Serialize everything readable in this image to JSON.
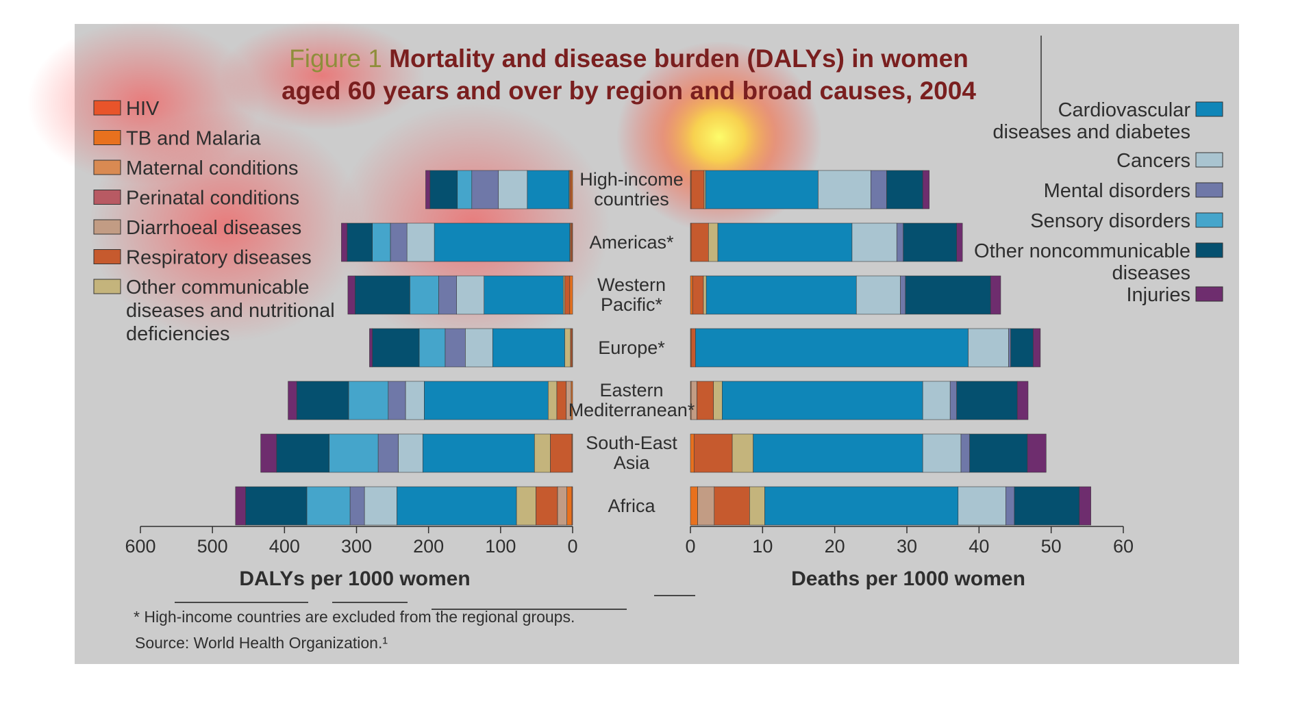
{
  "figure": {
    "title_prefix": "Figure 1",
    "title_line1": "Mortality and disease burden (DALYs) in women",
    "title_line2": "aged 60 years and over by region and broad causes, 2004",
    "footnote": "* High-income countries are excluded from the regional groups.",
    "source": "Source: World Health Organization.¹",
    "colors": {
      "background": "#cccccc",
      "title_prefix": "#8e8e3a",
      "title": "#7a1f1f",
      "text": "#2e2e2e"
    }
  },
  "legend_left": [
    {
      "label": "HIV",
      "color": "#e8542a"
    },
    {
      "label": "TB and Malaria",
      "color": "#e8711e"
    },
    {
      "label": "Maternal conditions",
      "color": "#d98a52"
    },
    {
      "label": "Perinatal conditions",
      "color": "#b85a63"
    },
    {
      "label": "Diarrhoeal diseases",
      "color": "#c29c84"
    },
    {
      "label": "Respiratory diseases",
      "color": "#c65a2e"
    },
    {
      "label": "Other communicable diseases and nutritional deficiencies",
      "label_lines": [
        "Other communicable",
        "diseases and nutritional",
        "deficiencies"
      ],
      "color": "#c4b47c"
    }
  ],
  "legend_right": [
    {
      "label": "Cardiovascular diseases and diabetes",
      "label_lines": [
        "Cardiovascular",
        "diseases and diabetes"
      ],
      "color": "#0f86b8"
    },
    {
      "label": "Cancers",
      "label_lines": [
        "Cancers"
      ],
      "color": "#a9c4d0"
    },
    {
      "label": "Mental disorders",
      "label_lines": [
        "Mental disorders"
      ],
      "color": "#6f78a8"
    },
    {
      "label": "Sensory disorders",
      "label_lines": [
        "Sensory disorders"
      ],
      "color": "#45a5cb"
    },
    {
      "label": "Other noncommunicable diseases",
      "label_lines": [
        "Other noncommunicable",
        "diseases"
      ],
      "color": "#05506f"
    },
    {
      "label": "Injuries",
      "label_lines": [
        "Injuries"
      ],
      "color": "#6e2d6e"
    }
  ],
  "regions": [
    {
      "name": "High-income countries",
      "lines": [
        "High-income",
        "countries"
      ]
    },
    {
      "name": "Americas*",
      "lines": [
        "Americas*"
      ]
    },
    {
      "name": "Western Pacific*",
      "lines": [
        "Western",
        "Pacific*"
      ]
    },
    {
      "name": "Europe*",
      "lines": [
        "Europe*"
      ]
    },
    {
      "name": "Eastern Mediterranean*",
      "lines": [
        "Eastern",
        "Mediterranean*"
      ]
    },
    {
      "name": "South-East Asia",
      "lines": [
        "South-East",
        "Asia"
      ]
    },
    {
      "name": "Africa",
      "lines": [
        "Africa"
      ]
    }
  ],
  "chart_data": [
    {
      "type": "bar",
      "orientation": "horizontal",
      "stacked": true,
      "direction": "leftward",
      "xlabel": "DALYs per 1000 women",
      "xlim": [
        0,
        600
      ],
      "xticks": [
        600,
        500,
        400,
        300,
        200,
        100,
        0
      ],
      "categories": [
        "High-income countries",
        "Americas*",
        "Western Pacific*",
        "Europe*",
        "Eastern Mediterranean*",
        "South-East Asia",
        "Africa"
      ],
      "series": [
        {
          "name": "HIV",
          "color": "#e8542a",
          "values": [
            0,
            0,
            0,
            0,
            0,
            0,
            1
          ]
        },
        {
          "name": "TB and Malaria",
          "color": "#e8711e",
          "values": [
            2,
            1,
            4,
            1,
            2,
            1,
            7
          ]
        },
        {
          "name": "Maternal conditions",
          "color": "#d98a52",
          "values": [
            0,
            0,
            0,
            0,
            0,
            0,
            0
          ]
        },
        {
          "name": "Perinatal conditions",
          "color": "#b85a63",
          "values": [
            0,
            0,
            0,
            0,
            0,
            0,
            0
          ]
        },
        {
          "name": "Diarrhoeal diseases",
          "color": "#c29c84",
          "values": [
            0,
            0,
            0,
            0,
            7,
            0,
            13
          ]
        },
        {
          "name": "Respiratory diseases",
          "color": "#c65a2e",
          "values": [
            2,
            2,
            7,
            2,
            13,
            30,
            30
          ]
        },
        {
          "name": "Other communicable diseases and nutritional deficiencies",
          "color": "#c4b47c",
          "values": [
            1,
            1,
            2,
            8,
            12,
            22,
            27
          ]
        },
        {
          "name": "Cardiovascular diseases and diabetes",
          "color": "#0f86b8",
          "values": [
            58,
            188,
            110,
            100,
            172,
            155,
            166
          ]
        },
        {
          "name": "Cancers",
          "color": "#a9c4d0",
          "values": [
            40,
            38,
            38,
            38,
            26,
            34,
            45
          ]
        },
        {
          "name": "Mental disorders",
          "color": "#6f78a8",
          "values": [
            37,
            23,
            25,
            28,
            24,
            28,
            20
          ]
        },
        {
          "name": "Sensory disorders",
          "color": "#45a5cb",
          "values": [
            20,
            25,
            40,
            36,
            55,
            68,
            60
          ]
        },
        {
          "name": "Other noncommunicable diseases",
          "color": "#05506f",
          "values": [
            38,
            35,
            76,
            65,
            72,
            73,
            85
          ]
        },
        {
          "name": "Injuries",
          "color": "#6e2d6e",
          "values": [
            6,
            8,
            10,
            4,
            12,
            22,
            14
          ]
        }
      ]
    },
    {
      "type": "bar",
      "orientation": "horizontal",
      "stacked": true,
      "direction": "rightward",
      "xlabel": "Deaths per 1000 women",
      "xlim": [
        0,
        60
      ],
      "xticks": [
        0,
        10,
        20,
        30,
        40,
        50,
        60
      ],
      "categories": [
        "High-income countries",
        "Americas*",
        "Western Pacific*",
        "Europe*",
        "Eastern Mediterranean*",
        "South-East Asia",
        "Africa"
      ],
      "series": [
        {
          "name": "HIV",
          "color": "#e8542a",
          "values": [
            0,
            0,
            0,
            0,
            0,
            0,
            0
          ]
        },
        {
          "name": "TB and Malaria",
          "color": "#e8711e",
          "values": [
            0.1,
            0.1,
            0.3,
            0.1,
            0.1,
            0.5,
            1.0
          ]
        },
        {
          "name": "Maternal conditions",
          "color": "#d98a52",
          "values": [
            0,
            0,
            0,
            0,
            0,
            0,
            0
          ]
        },
        {
          "name": "Perinatal conditions",
          "color": "#b85a63",
          "values": [
            0,
            0,
            0,
            0,
            0,
            0,
            0
          ]
        },
        {
          "name": "Diarrhoeal diseases",
          "color": "#c29c84",
          "values": [
            0,
            0,
            0,
            0,
            0.8,
            0,
            2.3
          ]
        },
        {
          "name": "Respiratory diseases",
          "color": "#c65a2e",
          "values": [
            1.8,
            2.4,
            1.5,
            0.6,
            2.3,
            5.3,
            4.9
          ]
        },
        {
          "name": "Other communicable diseases and nutritional deficiencies",
          "color": "#c4b47c",
          "values": [
            0.2,
            1.3,
            0.4,
            0,
            1.2,
            2.9,
            2.1
          ]
        },
        {
          "name": "Cardiovascular diseases and diabetes",
          "color": "#0f86b8",
          "values": [
            15.6,
            18.6,
            20.8,
            37.8,
            27.8,
            23.5,
            26.8
          ]
        },
        {
          "name": "Cancers",
          "color": "#a9c4d0",
          "values": [
            7.3,
            6.2,
            6.1,
            5.6,
            3.8,
            5.3,
            6.6
          ]
        },
        {
          "name": "Mental disorders",
          "color": "#6f78a8",
          "values": [
            2.2,
            0.9,
            0.7,
            0.3,
            0.9,
            1.2,
            1.2
          ]
        },
        {
          "name": "Sensory disorders",
          "color": "#45a5cb",
          "values": [
            0,
            0,
            0,
            0,
            0,
            0,
            0
          ]
        },
        {
          "name": "Other noncommunicable diseases",
          "color": "#05506f",
          "values": [
            5.0,
            7.4,
            11.8,
            3.1,
            8.4,
            8.0,
            9.0
          ]
        },
        {
          "name": "Injuries",
          "color": "#6e2d6e",
          "values": [
            0.9,
            0.8,
            1.4,
            1.0,
            1.5,
            2.6,
            1.6
          ]
        }
      ]
    }
  ]
}
